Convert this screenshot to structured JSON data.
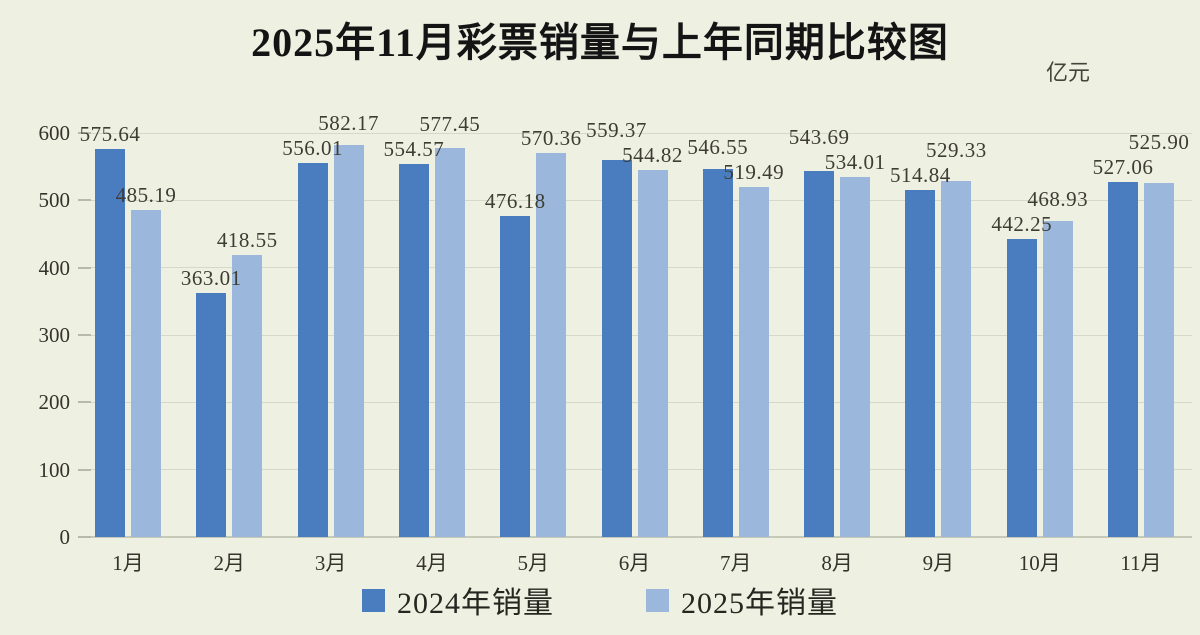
{
  "page": {
    "background": "#eef0e2"
  },
  "chart_data": {
    "type": "bar",
    "title": "2025年11月彩票销量与上年同期比较图",
    "unit_label": "亿元",
    "categories": [
      "1月",
      "2月",
      "3月",
      "4月",
      "5月",
      "6月",
      "7月",
      "8月",
      "9月",
      "10月",
      "11月"
    ],
    "series": [
      {
        "name": "2024年销量",
        "color": "#4a7cc0",
        "values": [
          575.64,
          363.01,
          556.01,
          554.57,
          476.18,
          559.37,
          546.55,
          543.69,
          514.84,
          442.25,
          527.06
        ]
      },
      {
        "name": "2025年销量",
        "color": "#9cb7dc",
        "values": [
          485.19,
          418.55,
          582.17,
          577.45,
          570.36,
          544.82,
          519.49,
          534.01,
          529.33,
          468.93,
          525.9
        ]
      }
    ],
    "y_ticks": [
      0,
      100,
      200,
      300,
      400,
      500,
      600
    ],
    "ylim": [
      0,
      600
    ],
    "grid": true,
    "legend_position": "bottom",
    "value_label_decimals": 2,
    "colors": {
      "background": "#eef0e2",
      "gridline": "#d6d8c9",
      "text": "#3e3d34",
      "title": "#141414"
    }
  }
}
